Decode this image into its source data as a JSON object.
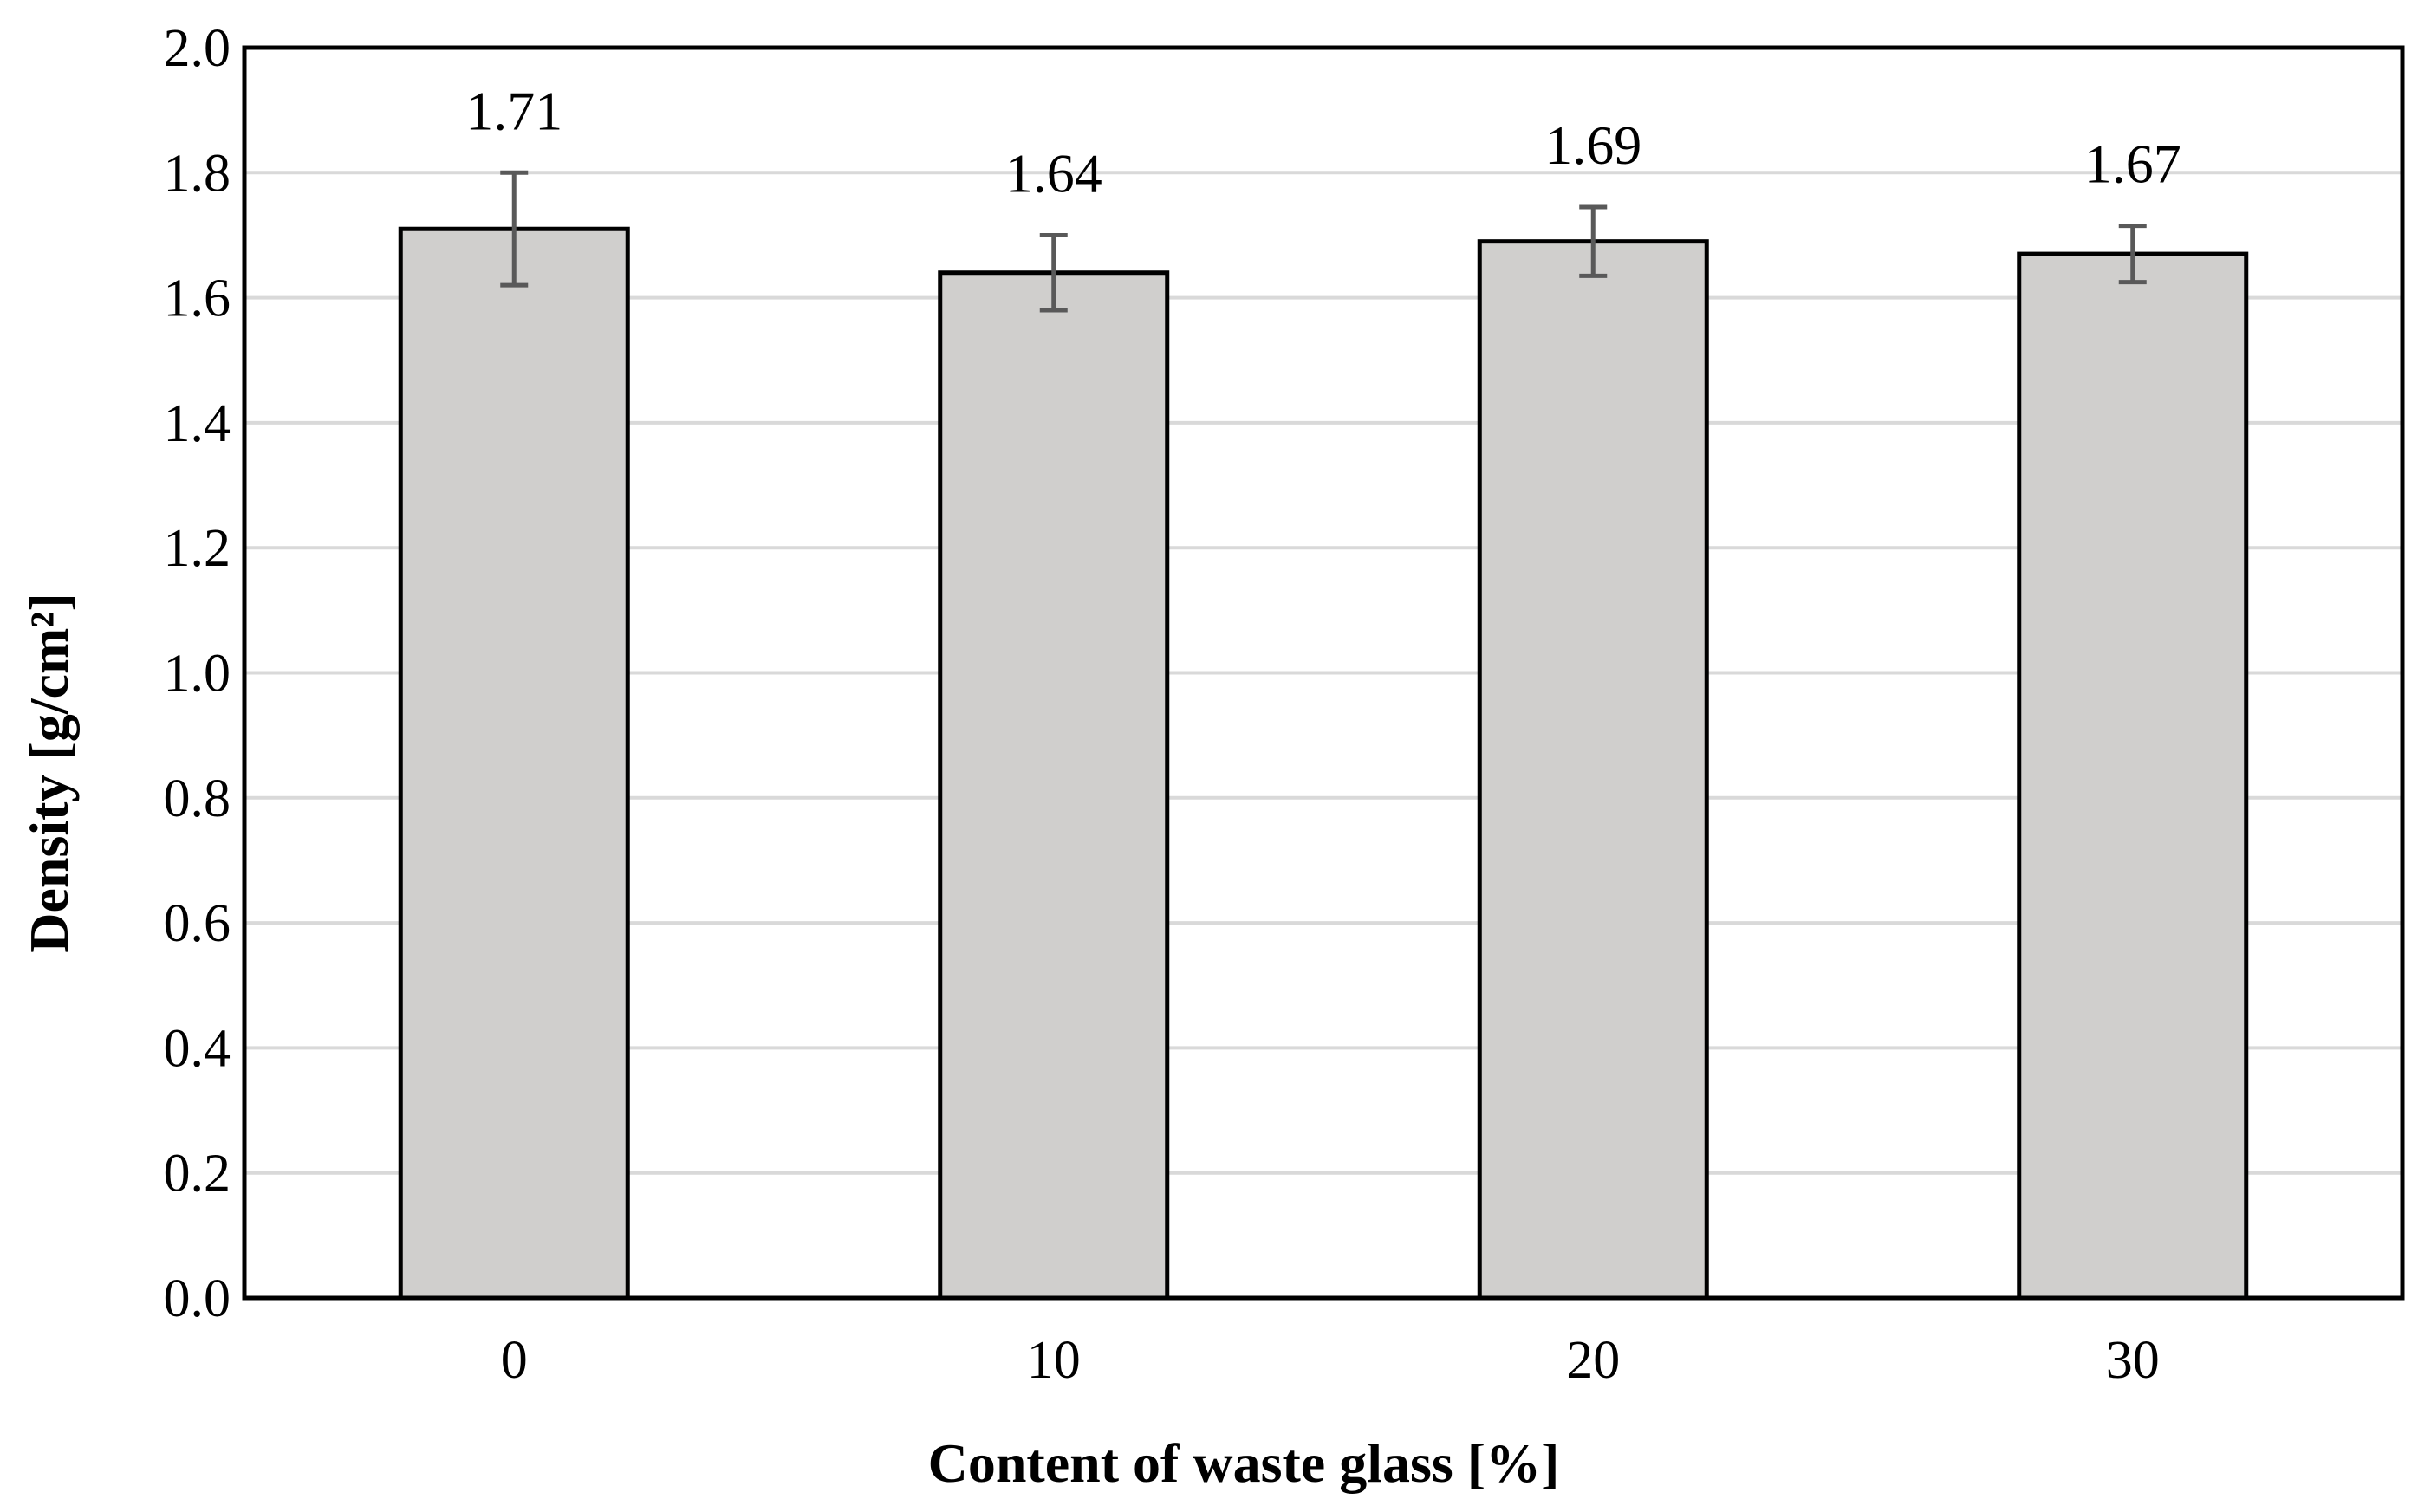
{
  "chart_data": {
    "type": "bar",
    "title": "",
    "xlabel": "Content of waste glass [%]",
    "ylabel": "Density  [g/cm²]",
    "categories": [
      "0",
      "10",
      "20",
      "30"
    ],
    "series": [
      {
        "values": [
          1.71,
          1.64,
          1.69,
          1.67
        ],
        "error": [
          0.09,
          0.06,
          0.055,
          0.045
        ],
        "data_labels": [
          "1.71",
          "1.64",
          "1.69",
          "1.67"
        ]
      }
    ],
    "ylim": [
      0,
      2.0
    ],
    "yticks": [
      "0.0",
      "0.2",
      "0.4",
      "0.6",
      "0.8",
      "1.0",
      "1.2",
      "1.4",
      "1.6",
      "1.8",
      "2.0"
    ],
    "grid": true,
    "legend": "none",
    "colors": {
      "bar_fill": "#d0cfcd",
      "bar_stroke": "#000000",
      "error_bar": "#595959",
      "grid": "#d9d9d9",
      "axis": "#000000"
    }
  }
}
